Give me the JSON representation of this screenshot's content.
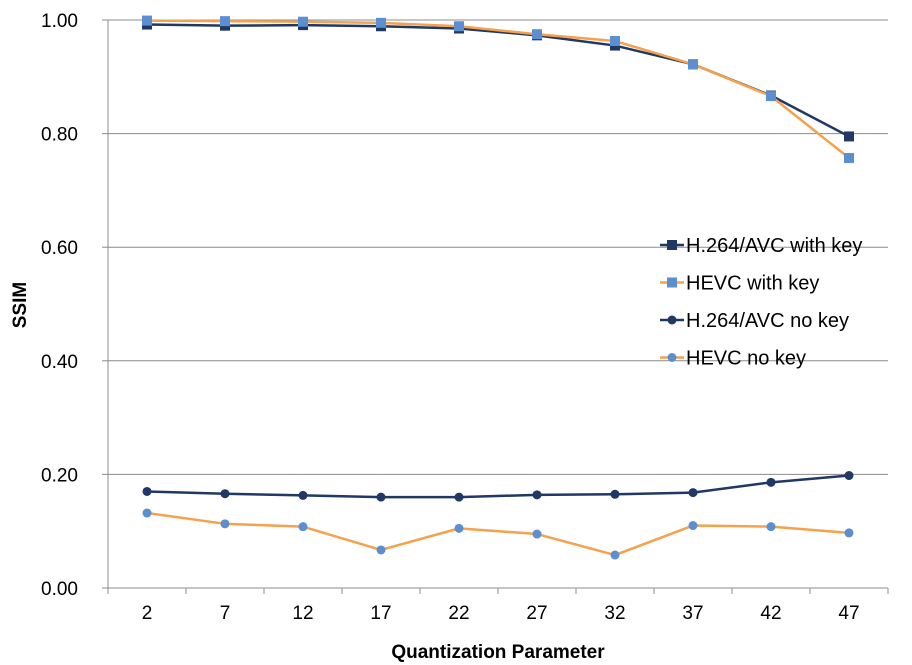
{
  "chart_data": {
    "type": "line",
    "title": "",
    "xlabel": "Quantization Parameter",
    "ylabel": "SSIM",
    "categories": [
      "2",
      "7",
      "12",
      "17",
      "22",
      "27",
      "32",
      "37",
      "42",
      "47"
    ],
    "ylim": [
      0,
      1
    ],
    "yticks": [
      "0.00",
      "0.20",
      "0.40",
      "0.60",
      "0.80",
      "1.00"
    ],
    "grid": "horizontal",
    "legend_position": "right",
    "series": [
      {
        "name": "H.264/AVC with key",
        "line_color": "#1f3864",
        "marker_color": "#1f3864",
        "marker": "square",
        "values": [
          0.992,
          0.99,
          0.991,
          0.989,
          0.985,
          0.973,
          0.955,
          0.922,
          0.867,
          0.795
        ]
      },
      {
        "name": "HEVC with key",
        "line_color": "#f4a24c",
        "marker_color": "#5b8fd0",
        "marker": "square",
        "values": [
          0.999,
          0.998,
          0.997,
          0.995,
          0.989,
          0.975,
          0.963,
          0.922,
          0.866,
          0.757
        ]
      },
      {
        "name": "H.264/AVC no key",
        "line_color": "#1f3864",
        "marker_color": "#1f3864",
        "marker": "circle",
        "values": [
          0.17,
          0.166,
          0.163,
          0.16,
          0.16,
          0.164,
          0.165,
          0.168,
          0.186,
          0.198
        ]
      },
      {
        "name": "HEVC no key",
        "line_color": "#f4a24c",
        "marker_color": "#5b8fd0",
        "marker": "circle",
        "values": [
          0.132,
          0.113,
          0.108,
          0.067,
          0.105,
          0.095,
          0.058,
          0.11,
          0.108,
          0.097
        ]
      }
    ]
  }
}
